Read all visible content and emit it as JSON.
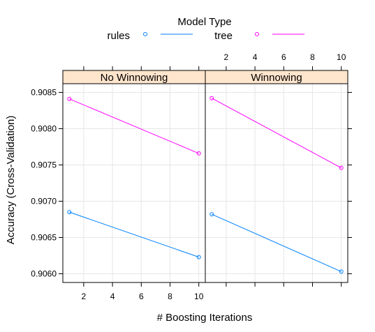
{
  "chart_data": {
    "type": "line",
    "legend": {
      "title": "Model Type",
      "placement": "top",
      "entries": [
        {
          "name": "rules",
          "color": "#0080ff"
        },
        {
          "name": "tree",
          "color": "#ff00ff"
        }
      ]
    },
    "xlabel": "# Boosting Iterations",
    "ylabel": "Accuracy (Cross-Validation)",
    "x_ticks": [
      2,
      4,
      6,
      8,
      10
    ],
    "y_ticks": [
      0.906,
      0.9065,
      0.907,
      0.9075,
      0.908,
      0.9085
    ],
    "y_tick_labels": [
      "0.9060",
      "0.9065",
      "0.9070",
      "0.9075",
      "0.9080",
      "0.9085"
    ],
    "xlim": [
      0.55,
      10.45
    ],
    "ylim": [
      0.90588,
      0.90862
    ],
    "grid": true,
    "strip_color": "#ffe5cc",
    "panels": [
      {
        "title": "No Winnowing",
        "series": [
          {
            "name": "rules",
            "x": [
              1,
              10
            ],
            "y": [
              0.90685,
              0.90623
            ]
          },
          {
            "name": "tree",
            "x": [
              1,
              10
            ],
            "y": [
              0.90841,
              0.90766
            ]
          }
        ]
      },
      {
        "title": "Winnowing",
        "series": [
          {
            "name": "rules",
            "x": [
              1,
              10
            ],
            "y": [
              0.90682,
              0.90603
            ]
          },
          {
            "name": "tree",
            "x": [
              1,
              10
            ],
            "y": [
              0.90842,
              0.90746
            ]
          }
        ]
      }
    ]
  }
}
